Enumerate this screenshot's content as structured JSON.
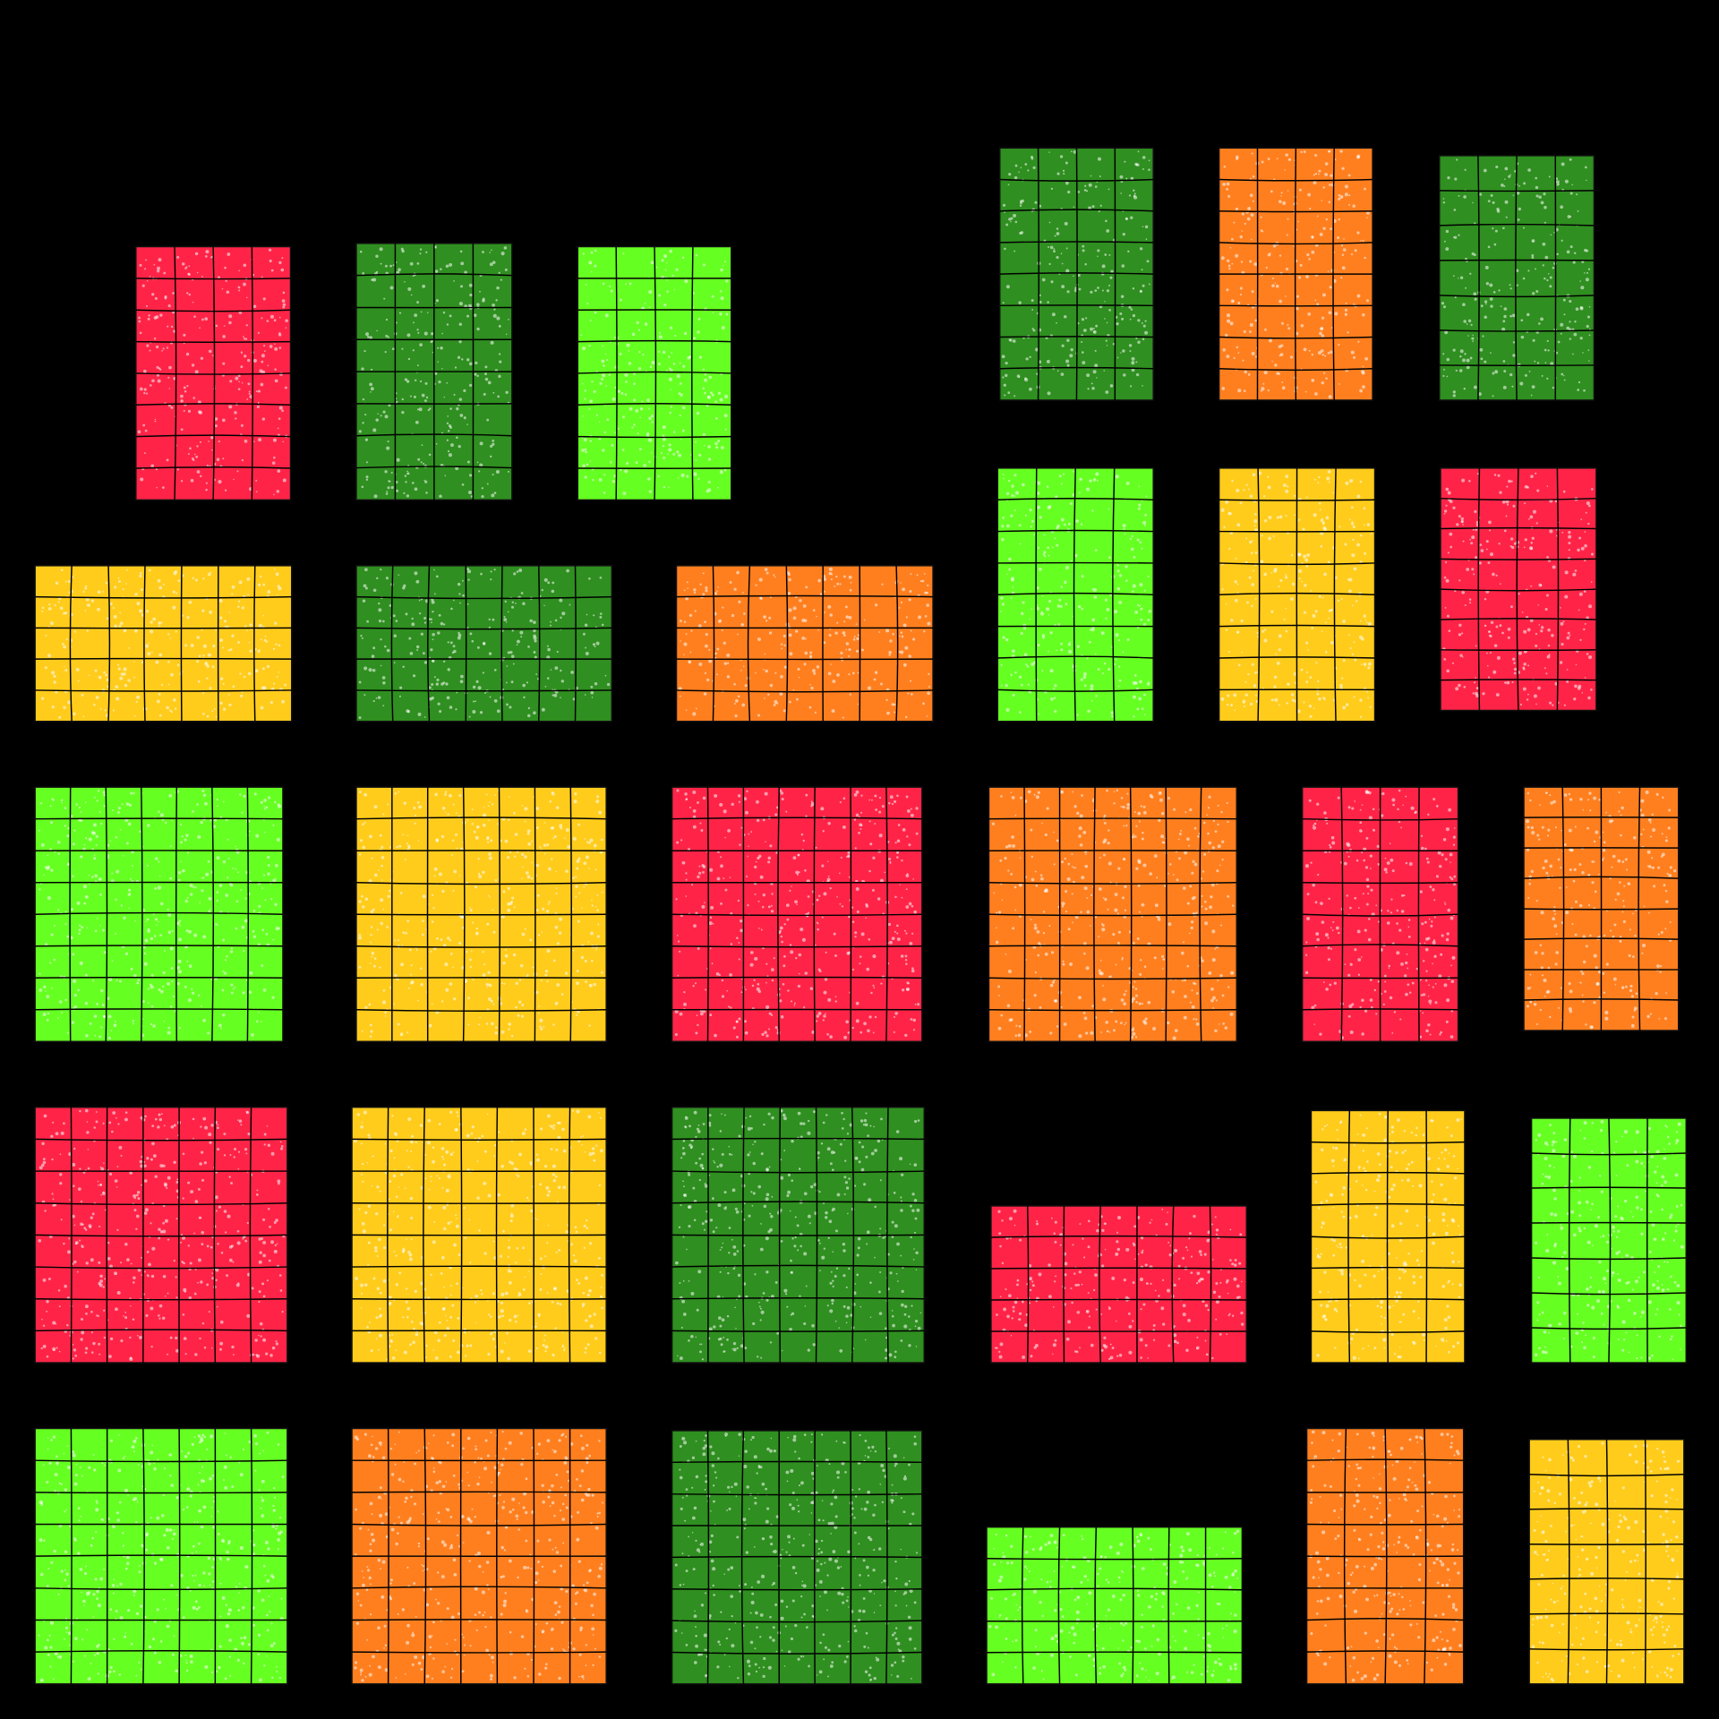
{
  "blocks": [
    {
      "color": "#2f8f20"
    },
    {
      "color": "#ff7f1f"
    },
    {
      "color": "#2f8f20"
    },
    {
      "color": "#ff2447"
    },
    {
      "color": "#2f8f20"
    },
    {
      "color": "#66ff22"
    },
    {
      "color": "#ffcc1c"
    },
    {
      "color": "#2f8f20"
    },
    {
      "color": "#ff7f1f"
    },
    {
      "color": "#66ff22"
    },
    {
      "color": "#ffcc1c"
    },
    {
      "color": "#ff2447"
    },
    {
      "color": "#66ff22"
    },
    {
      "color": "#ffcc1c"
    },
    {
      "color": "#ff2447"
    },
    {
      "color": "#ff7f1f"
    },
    {
      "color": "#ff2447"
    },
    {
      "color": "#ff7f1f"
    },
    {
      "color": "#ff2447"
    },
    {
      "color": "#ffcc1c"
    },
    {
      "color": "#2f8f20"
    },
    {
      "color": "#ff2447"
    },
    {
      "color": "#ffcc1c"
    },
    {
      "color": "#66ff22"
    },
    {
      "color": "#66ff22"
    },
    {
      "color": "#ff7f1f"
    },
    {
      "color": "#2f8f20"
    },
    {
      "color": "#66ff22"
    },
    {
      "color": "#ff7f1f"
    },
    {
      "color": "#ffcc1c"
    }
  ]
}
